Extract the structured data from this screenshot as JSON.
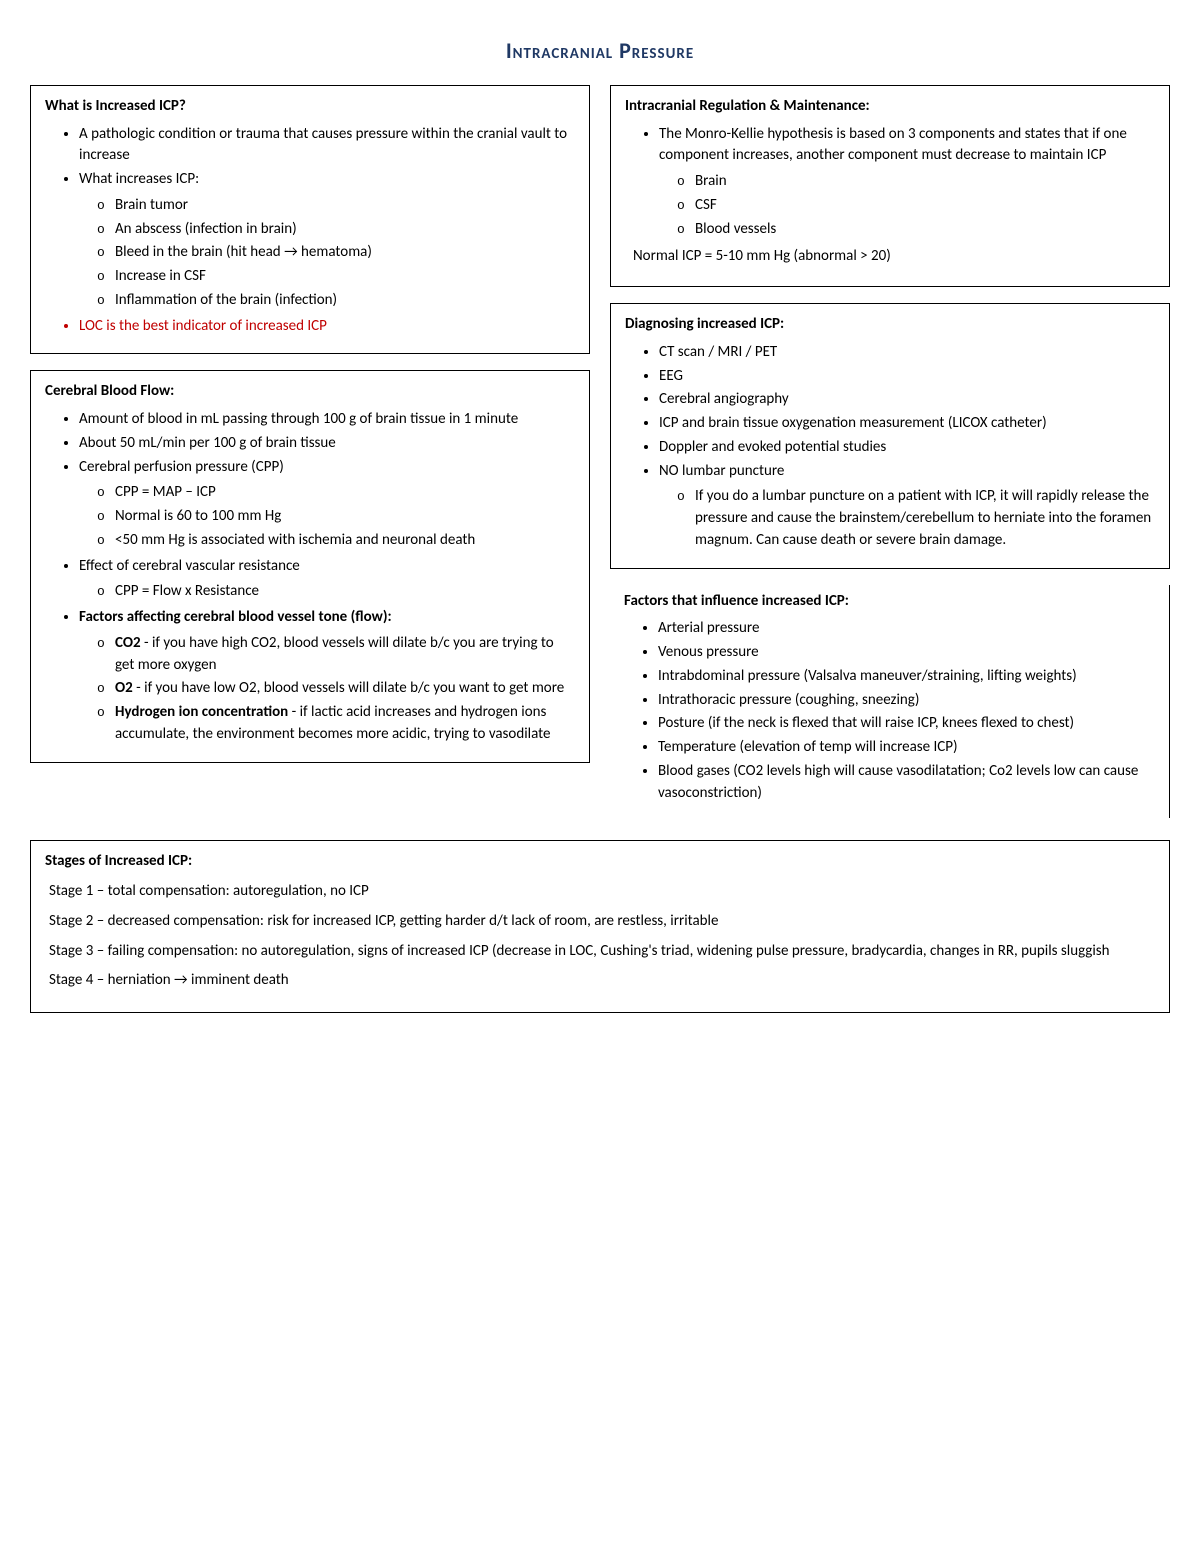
{
  "title": "Intracranial Pressure",
  "box1": {
    "heading": "What is Increased ICP?",
    "items": [
      {
        "text": "A pathologic condition or trauma that causes pressure within the cranial vault to increase"
      },
      {
        "text": "What increases ICP:",
        "sub": [
          "Brain tumor",
          "An abscess (infection in brain)",
          "Bleed in the brain (hit head → hematoma)",
          "Increase in CSF",
          "Inflammation of the brain (infection)"
        ]
      },
      {
        "text": "LOC is the best indicator of increased ICP",
        "highlight": true
      }
    ]
  },
  "box2": {
    "heading": "Cerebral Blood Flow:",
    "items": [
      {
        "text": "Amount of blood in mL passing through 100 g of brain tissue in 1 minute"
      },
      {
        "text": "About 50 mL/min per 100 g of brain tissue"
      },
      {
        "text": "Cerebral perfusion pressure (CPP)",
        "sub": [
          "CPP = MAP – ICP",
          "Normal is 60 to 100 mm Hg",
          "<50 mm Hg is associated with ischemia and neuronal death"
        ]
      },
      {
        "text": "Effect of cerebral vascular resistance",
        "sub": [
          "CPP = Flow x Resistance"
        ]
      },
      {
        "boldLead": "Factors affecting cerebral blood vessel tone (flow):",
        "subRich": [
          {
            "lead": "CO2",
            "rest": " - if you have high CO2, blood vessels will dilate b/c you are trying to get more oxygen"
          },
          {
            "lead": "O2",
            "rest": " - if you have low O2, blood vessels will dilate b/c you want to get more"
          },
          {
            "lead": "Hydrogen ion concentration",
            "rest": " - if lactic acid increases and hydrogen ions accumulate, the environment becomes more acidic, trying to vasodilate"
          }
        ]
      }
    ]
  },
  "box3": {
    "heading": "Intracranial Regulation & Maintenance:",
    "items": [
      {
        "text": "The Monro-Kellie hypothesis is based on 3 components and states that if one component increases, another component must decrease to maintain ICP",
        "sub": [
          "Brain",
          "CSF",
          "Blood vessels"
        ]
      }
    ],
    "footer": "Normal ICP = 5-10 mm Hg (abnormal > 20)"
  },
  "box4": {
    "heading": "Diagnosing increased ICP:",
    "items": [
      {
        "text": "CT scan / MRI / PET"
      },
      {
        "text": "EEG"
      },
      {
        "text": "Cerebral angiography"
      },
      {
        "text": "ICP and brain tissue oxygenation measurement (LICOX catheter)"
      },
      {
        "text": "Doppler and evoked potential studies"
      },
      {
        "text": "NO lumbar puncture",
        "sub": [
          "If you do a lumbar puncture on a patient with ICP, it will rapidly release the pressure and cause the brainstem/cerebellum to herniate into the foramen magnum. Can cause death or severe brain damage."
        ]
      }
    ]
  },
  "box5": {
    "heading": "Factors that influence increased ICP:",
    "items": [
      "Arterial pressure",
      "Venous pressure",
      "Intrabdominal pressure (Valsalva maneuver/straining, lifting weights)",
      "Intrathoracic pressure (coughing, sneezing)",
      "Posture (if the neck is flexed that will raise ICP, knees flexed to chest)",
      "Temperature (elevation of temp will increase ICP)",
      "Blood gases (CO2 levels high will cause vasodilatation; Co2 levels low can cause vasoconstriction)"
    ]
  },
  "box6": {
    "heading": "Stages of Increased ICP:",
    "stages": [
      "Stage 1 – total compensation: autoregulation, no ICP",
      "Stage 2 – decreased compensation: risk for increased ICP, getting harder d/t lack of room, are restless, irritable",
      "Stage 3 – failing compensation: no autoregulation, signs of increased ICP (decrease in LOC, Cushing's triad, widening pulse pressure, bradycardia, changes in RR, pupils sluggish",
      "Stage 4 – herniation → imminent death"
    ]
  }
}
